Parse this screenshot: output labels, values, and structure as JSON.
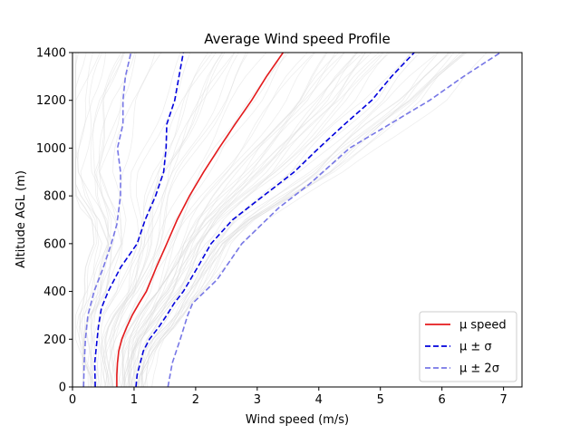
{
  "chart_data": {
    "type": "line",
    "title": "Average Wind speed Profile",
    "xlabel": "Wind speed (m/s)",
    "ylabel": "Altitude AGL (m)",
    "xlim": [
      0,
      7.3
    ],
    "ylim": [
      0,
      1400
    ],
    "xticks": [
      0,
      1,
      2,
      3,
      4,
      5,
      6,
      7
    ],
    "yticks": [
      0,
      200,
      400,
      600,
      800,
      1000,
      1200,
      1400
    ],
    "grid": false,
    "legend_position": "lower-right",
    "background_lines": "many thin light-grey individual wind profiles (ensemble members)",
    "series": [
      {
        "name": "μ speed",
        "legend_label": "μ speed",
        "color": "#e41a1c",
        "style": "solid",
        "points": [
          [
            0.72,
            0
          ],
          [
            0.72,
            50
          ],
          [
            0.73,
            100
          ],
          [
            0.75,
            150
          ],
          [
            0.8,
            200
          ],
          [
            0.88,
            250
          ],
          [
            0.97,
            300
          ],
          [
            1.08,
            350
          ],
          [
            1.2,
            400
          ],
          [
            1.36,
            500
          ],
          [
            1.53,
            600
          ],
          [
            1.7,
            700
          ],
          [
            1.9,
            800
          ],
          [
            2.13,
            900
          ],
          [
            2.38,
            1000
          ],
          [
            2.64,
            1100
          ],
          [
            2.91,
            1200
          ],
          [
            3.15,
            1300
          ],
          [
            3.42,
            1400
          ]
        ]
      },
      {
        "name": "μ ± σ upper",
        "legend_label": "μ ± σ",
        "color": "#0000dd",
        "style": "dashed",
        "points": [
          [
            1.03,
            0
          ],
          [
            1.05,
            50
          ],
          [
            1.1,
            100
          ],
          [
            1.15,
            150
          ],
          [
            1.25,
            200
          ],
          [
            1.4,
            250
          ],
          [
            1.53,
            300
          ],
          [
            1.65,
            350
          ],
          [
            1.8,
            400
          ],
          [
            2.03,
            500
          ],
          [
            2.25,
            600
          ],
          [
            2.6,
            700
          ],
          [
            3.1,
            800
          ],
          [
            3.6,
            900
          ],
          [
            4.0,
            1000
          ],
          [
            4.42,
            1100
          ],
          [
            4.86,
            1200
          ],
          [
            5.18,
            1300
          ],
          [
            5.55,
            1400
          ]
        ]
      },
      {
        "name": "μ ± σ lower",
        "legend_label": "",
        "color": "#0000dd",
        "style": "dashed",
        "points": [
          [
            0.37,
            0
          ],
          [
            0.36,
            100
          ],
          [
            0.42,
            250
          ],
          [
            0.47,
            330
          ],
          [
            0.58,
            400
          ],
          [
            0.78,
            500
          ],
          [
            1.05,
            600
          ],
          [
            1.18,
            700
          ],
          [
            1.35,
            800
          ],
          [
            1.48,
            900
          ],
          [
            1.52,
            1000
          ],
          [
            1.53,
            1100
          ],
          [
            1.66,
            1200
          ],
          [
            1.73,
            1300
          ],
          [
            1.8,
            1400
          ]
        ]
      },
      {
        "name": "μ ± 2σ upper",
        "legend_label": "μ ± 2σ",
        "color": "#7777e6",
        "style": "dashed",
        "points": [
          [
            1.55,
            0
          ],
          [
            1.62,
            100
          ],
          [
            1.75,
            200
          ],
          [
            1.87,
            300
          ],
          [
            1.95,
            350
          ],
          [
            2.35,
            450
          ],
          [
            2.75,
            600
          ],
          [
            3.35,
            750
          ],
          [
            3.85,
            850
          ],
          [
            4.5,
            1000
          ],
          [
            5.15,
            1100
          ],
          [
            5.8,
            1200
          ],
          [
            6.35,
            1300
          ],
          [
            6.95,
            1400
          ]
        ]
      },
      {
        "name": "μ ± 2σ lower",
        "legend_label": "",
        "color": "#7777e6",
        "style": "dashed",
        "points": [
          [
            0.18,
            0
          ],
          [
            0.19,
            100
          ],
          [
            0.21,
            200
          ],
          [
            0.25,
            300
          ],
          [
            0.35,
            400
          ],
          [
            0.5,
            500
          ],
          [
            0.63,
            600
          ],
          [
            0.72,
            680
          ],
          [
            0.78,
            800
          ],
          [
            0.78,
            900
          ],
          [
            0.73,
            1000
          ],
          [
            0.82,
            1100
          ],
          [
            0.82,
            1200
          ],
          [
            0.86,
            1300
          ],
          [
            0.95,
            1400
          ]
        ]
      }
    ],
    "legend": [
      {
        "label": "μ speed",
        "color": "#e41a1c",
        "style": "solid"
      },
      {
        "label": "μ ± σ",
        "color": "#0000dd",
        "style": "dashed"
      },
      {
        "label": "μ ± 2σ",
        "color": "#7777e6",
        "style": "dashed"
      }
    ]
  }
}
